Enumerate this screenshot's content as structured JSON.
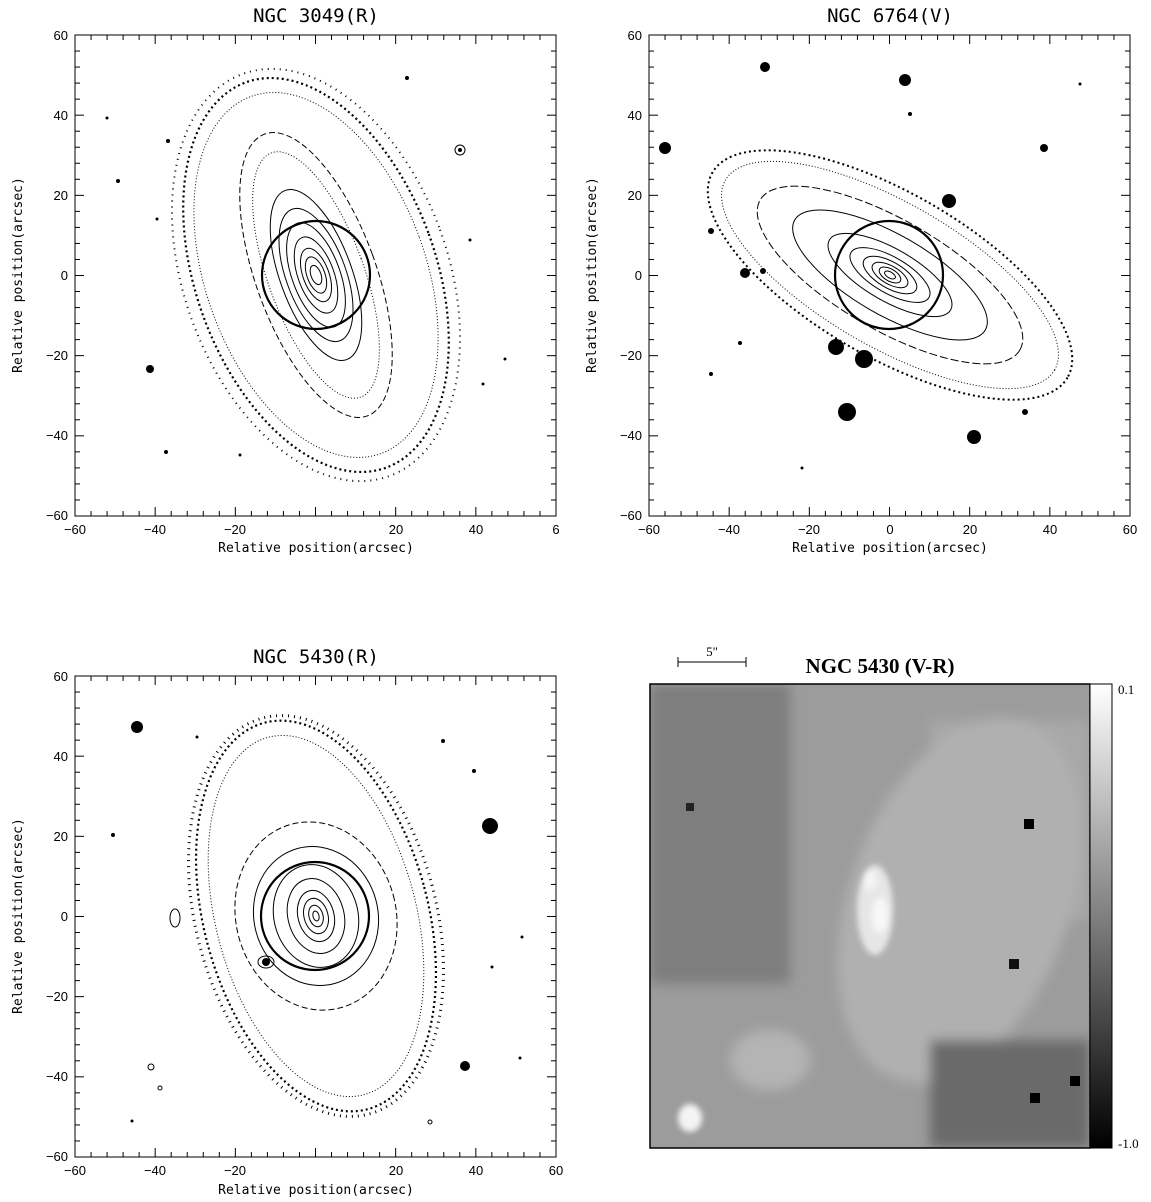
{
  "figure": {
    "panels": [
      {
        "title": "NGC 3049(R)",
        "xlabel": "Relative position(arcsec)",
        "ylabel": "Relative position(arcsec)",
        "x_ticks": [
          "−60",
          "−40",
          "−20",
          "20",
          "40",
          "6"
        ],
        "y_ticks": [
          "60",
          "40",
          "20",
          "0",
          "−20",
          "−40",
          "−60"
        ]
      },
      {
        "title": "NGC 6764(V)",
        "xlabel": "Relative position(arcsec)",
        "ylabel": "Relative position(arcsec)",
        "x_ticks": [
          "−60",
          "−40",
          "−20",
          "0",
          "20",
          "40",
          "60"
        ],
        "y_ticks": [
          "60",
          "40",
          "20",
          "0",
          "−20",
          "−40",
          "−60"
        ]
      },
      {
        "title": "NGC 5430(R)",
        "xlabel": "Relative position(arcsec)",
        "ylabel": "Relative position(arcsec)",
        "x_ticks": [
          "−60",
          "−40",
          "−20",
          "20",
          "40",
          "60"
        ],
        "y_ticks": [
          "60",
          "40",
          "20",
          "0",
          "−20",
          "−40",
          "−60"
        ]
      }
    ],
    "colormap": {
      "title": "NGC 5430 (V-R)",
      "scale_label": "5\"",
      "colorbar_max": "0.1",
      "colorbar_min": "-1.0"
    }
  }
}
